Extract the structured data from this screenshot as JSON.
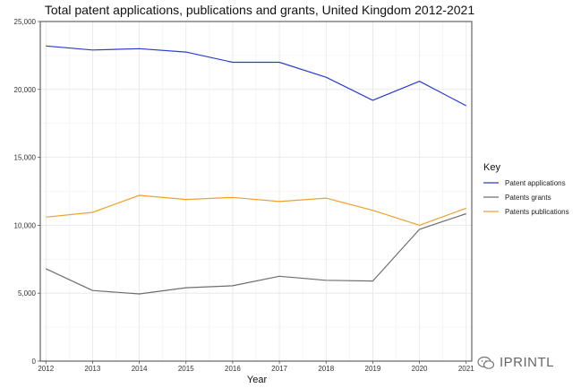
{
  "chart_data": {
    "type": "line",
    "title": "Total patent applications, publications and grants, United Kingdom 2012-2021",
    "xlabel": "Year",
    "ylabel": "",
    "x": [
      2012,
      2013,
      2014,
      2015,
      2016,
      2017,
      2018,
      2019,
      2020,
      2021
    ],
    "ylim": [
      0,
      25000
    ],
    "yticks": [
      0,
      5000,
      10000,
      15000,
      20000,
      25000
    ],
    "ytick_labels": [
      "0",
      "5,000",
      "10,000",
      "15,000",
      "20,000",
      "25,000"
    ],
    "grid": true,
    "legend": {
      "title": "Key",
      "position": "right"
    },
    "series": [
      {
        "name": "Patent applications",
        "color": "#2b3ccf",
        "values": [
          23200,
          22900,
          23000,
          22750,
          22000,
          22000,
          20900,
          19200,
          20600,
          18800
        ]
      },
      {
        "name": "Patents grants",
        "color": "#6e6e6e",
        "values": [
          6800,
          5200,
          4950,
          5400,
          5550,
          6250,
          5950,
          5900,
          9700,
          10850
        ]
      },
      {
        "name": "Patents publications",
        "color": "#f0a030",
        "values": [
          10600,
          10950,
          12200,
          11900,
          12050,
          11750,
          12000,
          11100,
          10000,
          11250
        ]
      }
    ]
  },
  "watermark": {
    "text": "IPRINTL",
    "icon": "wechat-icon"
  }
}
